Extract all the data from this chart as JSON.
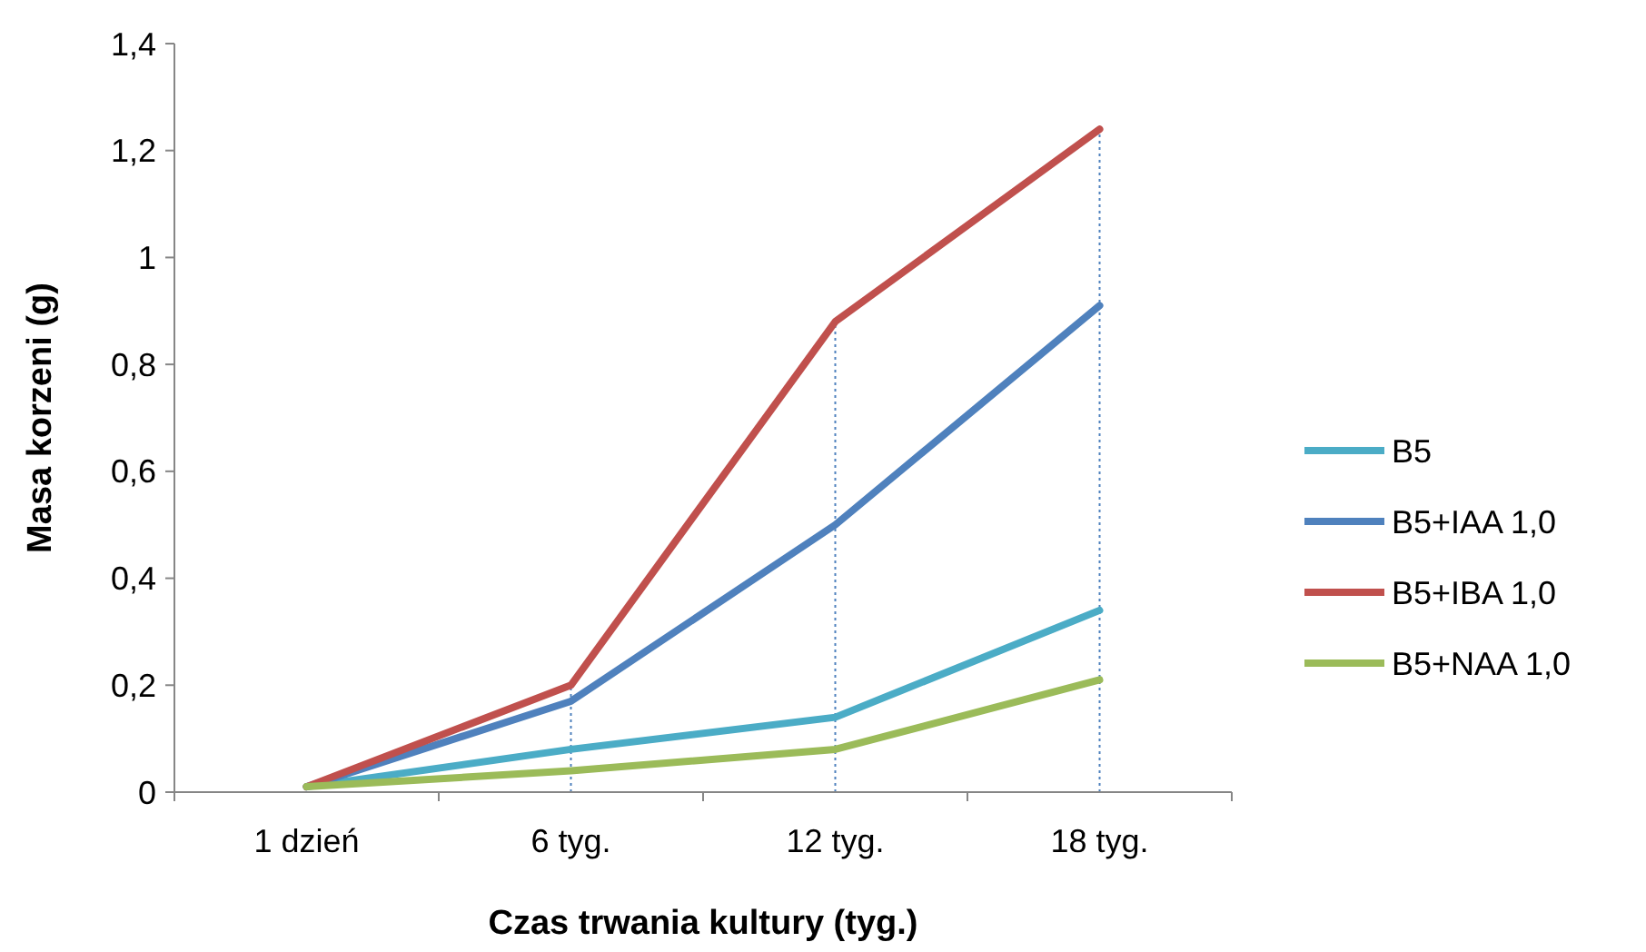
{
  "chart_data": {
    "type": "line",
    "xlabel": "Czas trwania kultury (tyg.)",
    "ylabel": "Masa korzeni (g)",
    "categories": [
      "1 dzień",
      "6 tyg.",
      "12 tyg.",
      "18 tyg."
    ],
    "series": [
      {
        "name": "B5",
        "color": "#4bacc6",
        "values": [
          0.01,
          0.08,
          0.14,
          0.34
        ]
      },
      {
        "name": "B5+IAA 1,0",
        "color": "#4f81bd",
        "values": [
          0.01,
          0.17,
          0.5,
          0.91
        ]
      },
      {
        "name": "B5+IBA 1,0",
        "color": "#c0504d",
        "values": [
          0.01,
          0.2,
          0.88,
          1.24
        ]
      },
      {
        "name": "B5+NAA 1,0",
        "color": "#9bbb59",
        "values": [
          0.01,
          0.04,
          0.08,
          0.21
        ]
      }
    ],
    "ylim": [
      0,
      1.4
    ],
    "yticks": [
      0,
      {
        "value": 0.2,
        "label": "0,2"
      },
      {
        "value": 0.4,
        "label": "0,4"
      },
      {
        "value": 0.6,
        "label": "0,6"
      },
      {
        "value": 0.8,
        "label": "0,8"
      },
      1,
      {
        "value": 1.2,
        "label": "1,2"
      },
      {
        "value": 1.4,
        "label": "1,4"
      }
    ],
    "ref_lines": [
      {
        "axis": "x",
        "value": "6 tyg.",
        "color": "#4f81bd",
        "line_style": "dotted"
      },
      {
        "axis": "x",
        "value": "12 tyg.",
        "color": "#4f81bd",
        "line_style": "dotted"
      },
      {
        "axis": "x",
        "value": "18 tyg.",
        "color": "#4f81bd",
        "line_style": "dotted"
      }
    ],
    "grid": false,
    "legend": "right",
    "marker": "none",
    "line_style": "solid"
  }
}
